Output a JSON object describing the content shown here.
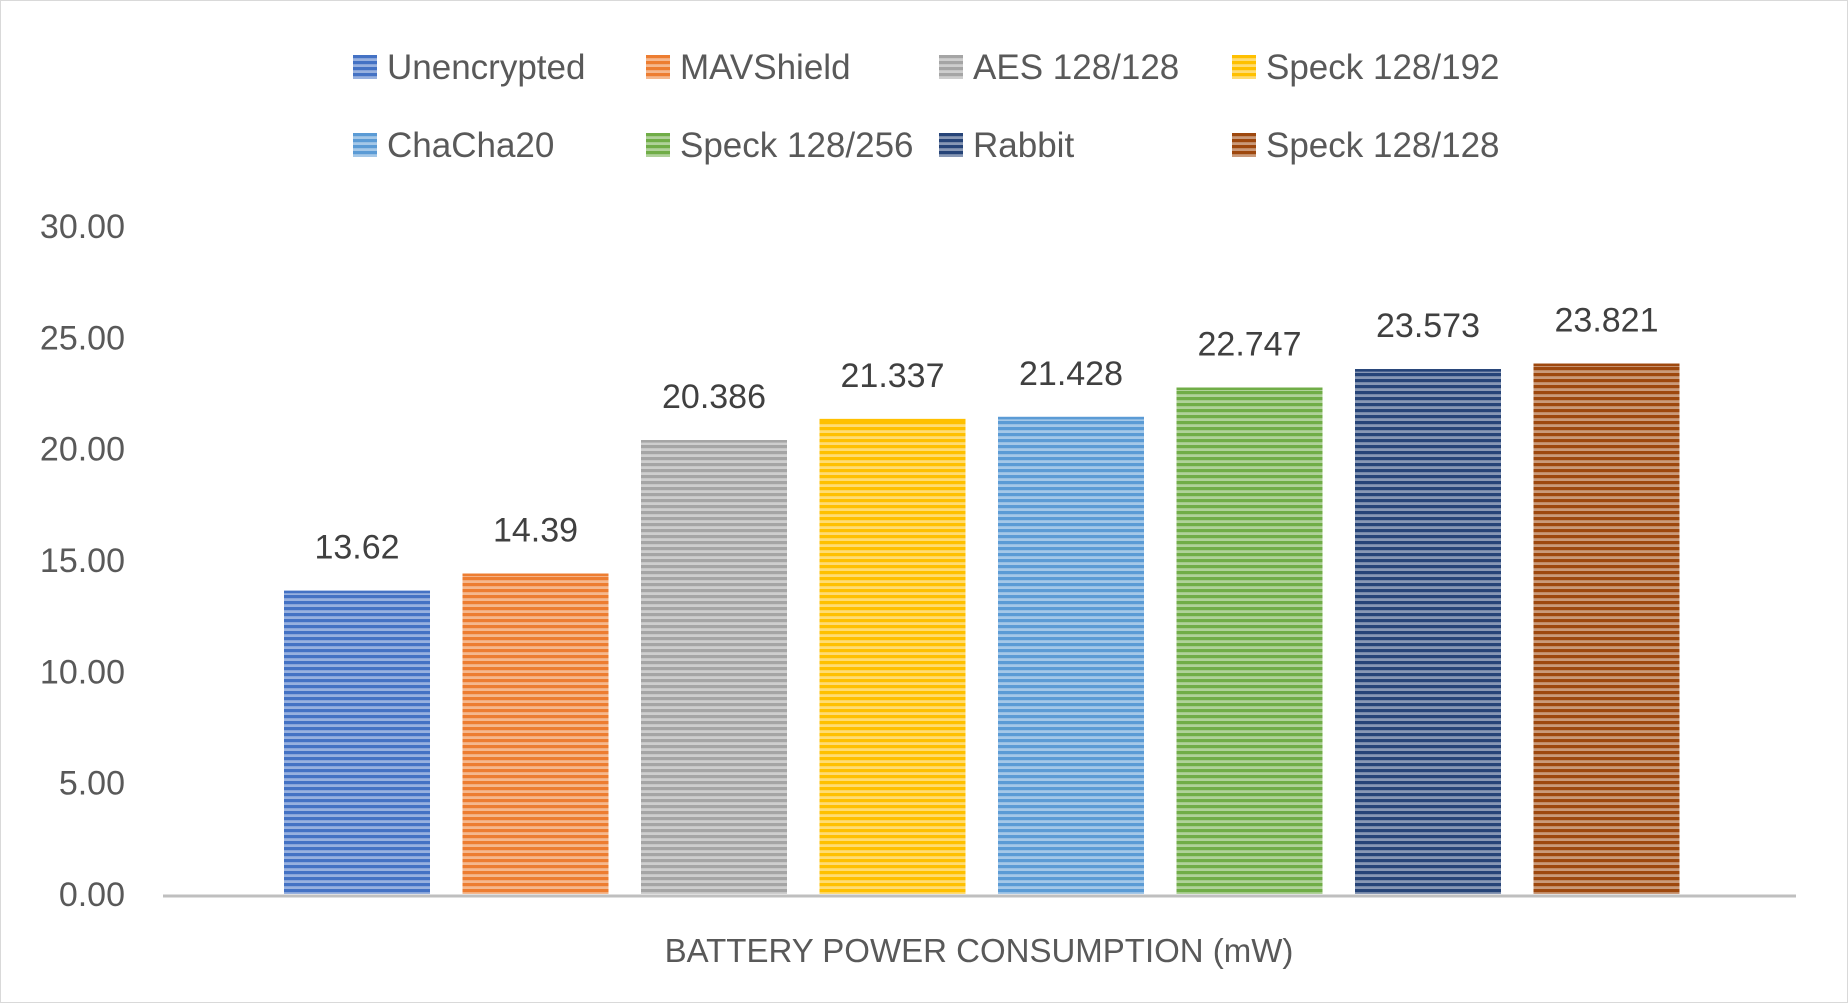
{
  "chart_data": {
    "type": "bar",
    "title": "",
    "xlabel": "BATTERY POWER CONSUMPTION (mW)",
    "ylabel": "",
    "ylim": [
      0,
      30
    ],
    "yticks": [
      "0.00",
      "5.00",
      "10.00",
      "15.00",
      "20.00",
      "25.00",
      "30.00"
    ],
    "grid": false,
    "legend_position": "top",
    "categories": [
      "BATTERY POWER CONSUMPTION (mW)"
    ],
    "series": [
      {
        "name": "Unencrypted",
        "values": [
          13.62
        ],
        "label": "13.62",
        "color": "#4472c4"
      },
      {
        "name": "MAVShield",
        "values": [
          14.39
        ],
        "label": "14.39",
        "color": "#ed7d31"
      },
      {
        "name": "AES 128/128",
        "values": [
          20.386
        ],
        "label": "20.386",
        "color": "#a5a5a5"
      },
      {
        "name": "Speck 128/192",
        "values": [
          21.337
        ],
        "label": "21.337",
        "color": "#ffc000"
      },
      {
        "name": "ChaCha20",
        "values": [
          21.428
        ],
        "label": "21.428",
        "color": "#5b9bd5"
      },
      {
        "name": "Speck 128/256",
        "values": [
          22.747
        ],
        "label": "22.747",
        "color": "#70ad47"
      },
      {
        "name": "Rabbit",
        "values": [
          23.573
        ],
        "label": "23.573",
        "color": "#264478"
      },
      {
        "name": "Speck 128/128",
        "values": [
          23.821
        ],
        "label": "23.821",
        "color": "#9e480e"
      }
    ],
    "legend_order": [
      "Unencrypted",
      "MAVShield",
      "AES 128/128",
      "Speck 128/192",
      "ChaCha20",
      "Speck 128/256",
      "Rabbit",
      "Speck 128/128"
    ],
    "bar_pattern": "horizontal-stripes"
  }
}
